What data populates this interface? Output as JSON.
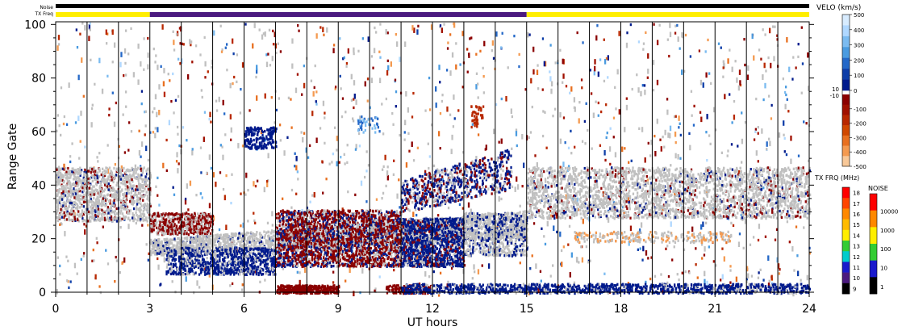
{
  "strip_labels": {
    "noise": "Noise",
    "tx_freq": "TX Freq"
  },
  "chart_data": {
    "type": "heatmap",
    "title": "",
    "xlabel": "UT hours",
    "ylabel": "Range Gate",
    "xlim": [
      0,
      24
    ],
    "ylim": [
      0,
      101
    ],
    "x_ticks": [
      0,
      3,
      6,
      9,
      12,
      15,
      18,
      21,
      24
    ],
    "y_ticks": [
      0,
      20,
      40,
      60,
      80,
      100
    ],
    "grid_x_hours": [
      1,
      2,
      3,
      4,
      5,
      6,
      7,
      8,
      9,
      10,
      11,
      12,
      13,
      14,
      15,
      16,
      17,
      18,
      19,
      20,
      21,
      22,
      23
    ],
    "tx_freq_strip": [
      {
        "from": 0,
        "to": 3,
        "level": 14,
        "color": "#ffee00"
      },
      {
        "from": 3,
        "to": 15,
        "level": 10,
        "color": "#4b1a7f"
      },
      {
        "from": 15,
        "to": 24,
        "level": 14,
        "color": "#ffee00"
      }
    ],
    "noise_strip": [
      {
        "from": 0,
        "to": 24,
        "level": 1,
        "color": "#000000"
      }
    ],
    "scatter_regions": [
      {
        "from_hour": 0,
        "to_hour": 3,
        "gate_low": 27,
        "gate_high": 47,
        "kind": "ground_scatter",
        "color": "#c0c0c0"
      },
      {
        "from_hour": 3,
        "to_hour": 15,
        "gate_low": 4,
        "gate_high": 32,
        "kind": "mixed_velocity",
        "color": "#8b0000"
      },
      {
        "from_hour": 15,
        "to_hour": 24,
        "gate_low": 28,
        "gate_high": 46,
        "kind": "ground_scatter",
        "color": "#c0c0c0"
      },
      {
        "from_hour": 7,
        "to_hour": 9,
        "gate_low": 0,
        "gate_high": 3,
        "kind": "negative_velocity",
        "color": "#8b0000"
      },
      {
        "from_hour": 11,
        "to_hour": 24,
        "gate_low": 0,
        "gate_high": 4,
        "kind": "positive_velocity",
        "color": "#001a8c"
      }
    ],
    "velo_colorbar": {
      "title": "VELO (km/s)",
      "ticks_upper": [
        500,
        400,
        300,
        200,
        100,
        0
      ],
      "mid_labels": [
        "10",
        "-10"
      ],
      "ticks_lower": [
        -100,
        -200,
        -300,
        -400,
        -500
      ],
      "colors_positive": [
        "#d8ecff",
        "#b0d8ff",
        "#7bbbf0",
        "#4a9be0",
        "#2468c8",
        "#0e3ea8",
        "#001a8c"
      ],
      "colors_negative": [
        "#8b0000",
        "#a01000",
        "#b82800",
        "#d04800",
        "#e87020",
        "#f49a50",
        "#f8c898"
      ]
    },
    "txfrq_colorbar": {
      "title": "TX FRQ (MHz)",
      "ticks": [
        18,
        17,
        16,
        15,
        14,
        13,
        12,
        11,
        10,
        9
      ],
      "colors": [
        "#ff0000",
        "#ff4400",
        "#ff8800",
        "#ffbb00",
        "#ffee00",
        "#33cc33",
        "#00cccc",
        "#1a1acc",
        "#4b1a7f",
        "#000000"
      ]
    },
    "noise_colorbar": {
      "title": "NOISE",
      "ticks": [
        10000,
        1000,
        100,
        10,
        1
      ],
      "colors": [
        "#ff0000",
        "#ff8800",
        "#ffee00",
        "#33cc33",
        "#1a1acc",
        "#000000"
      ]
    }
  }
}
